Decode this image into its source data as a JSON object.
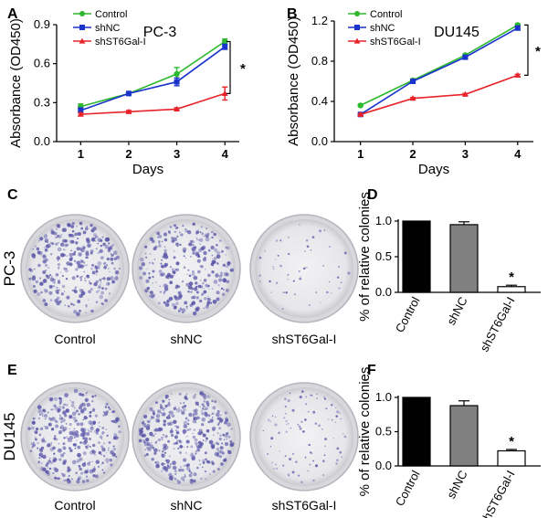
{
  "panel_labels": [
    "A",
    "B",
    "C",
    "D",
    "E",
    "F"
  ],
  "colors": {
    "control": "#2db82d",
    "shnc": "#1a33cc",
    "knockdown": "#e8242a",
    "bar_control": "#000000",
    "bar_shnc": "#808080",
    "bar_kd": "#ffffff",
    "dish_stain": "#5b57a8"
  },
  "significance_mark": "*",
  "dishes": {
    "rows": [
      {
        "row_label": "PC-3",
        "density": [
          0.75,
          0.7,
          0.12
        ]
      },
      {
        "row_label": "DU145",
        "density": [
          0.85,
          0.9,
          0.22
        ]
      }
    ],
    "labels": [
      "Control",
      "shNC",
      "shST6Gal-I"
    ]
  },
  "chart_data": [
    {
      "panel": "A",
      "type": "line",
      "title": "PC-3",
      "xlabel": "Days",
      "ylabel": "Absorbance (OD450)",
      "x": [
        1,
        2,
        3,
        4
      ],
      "xlim": [
        0.5,
        4.3
      ],
      "ylim": [
        0,
        0.9
      ],
      "yticks": [
        "0.0",
        "0.3",
        "0.6",
        "0.9"
      ],
      "xticks": [
        "1",
        "2",
        "3",
        "4"
      ],
      "series": [
        {
          "name": "Control",
          "values": [
            0.27,
            0.37,
            0.52,
            0.77
          ],
          "errors": [
            0.02,
            0.01,
            0.05,
            0.02
          ]
        },
        {
          "name": "shNC",
          "values": [
            0.24,
            0.37,
            0.46,
            0.73
          ],
          "errors": [
            0.02,
            0.01,
            0.03,
            0.02
          ]
        },
        {
          "name": "shST6Gal-I",
          "values": [
            0.21,
            0.23,
            0.25,
            0.37
          ],
          "errors": [
            0.01,
            0.01,
            0.01,
            0.05
          ]
        }
      ],
      "legend_position": "top-left",
      "grid": false
    },
    {
      "panel": "B",
      "type": "line",
      "title": "DU145",
      "xlabel": "Days",
      "ylabel": "Absorbance (OD450)",
      "x": [
        1,
        2,
        3,
        4
      ],
      "xlim": [
        0.5,
        4.3
      ],
      "ylim": [
        0,
        1.2
      ],
      "yticks": [
        "0.0",
        "0.4",
        "0.8",
        "1.2"
      ],
      "xticks": [
        "1",
        "2",
        "3",
        "4"
      ],
      "series": [
        {
          "name": "Control",
          "values": [
            0.36,
            0.61,
            0.86,
            1.16
          ],
          "errors": [
            0.01,
            0.01,
            0.01,
            0.01
          ]
        },
        {
          "name": "shNC",
          "values": [
            0.27,
            0.6,
            0.84,
            1.13
          ],
          "errors": [
            0.01,
            0.01,
            0.01,
            0.02
          ]
        },
        {
          "name": "shST6Gal-I",
          "values": [
            0.27,
            0.43,
            0.47,
            0.66
          ],
          "errors": [
            0.01,
            0.01,
            0.01,
            0.01
          ]
        }
      ],
      "legend_position": "top-left",
      "grid": false
    },
    {
      "panel": "D",
      "type": "bar",
      "ylabel": "% of relative colonies",
      "categories": [
        "Control",
        "shNC",
        "shST6Gal-I"
      ],
      "values": [
        1.0,
        0.95,
        0.08
      ],
      "errors": [
        0,
        0.04,
        0.02
      ],
      "ylim": [
        0,
        1.0
      ],
      "yticks": [
        "0.0",
        "0.5",
        "1.0"
      ],
      "significance": [
        false,
        false,
        true
      ]
    },
    {
      "panel": "F",
      "type": "bar",
      "ylabel": "% of relative colonies",
      "categories": [
        "Control",
        "shNC",
        "shST6Gal-I"
      ],
      "values": [
        1.0,
        0.88,
        0.22
      ],
      "errors": [
        0,
        0.07,
        0.02
      ],
      "ylim": [
        0,
        1.0
      ],
      "yticks": [
        "0.0",
        "0.5",
        "1.0"
      ],
      "significance": [
        false,
        false,
        true
      ]
    }
  ]
}
